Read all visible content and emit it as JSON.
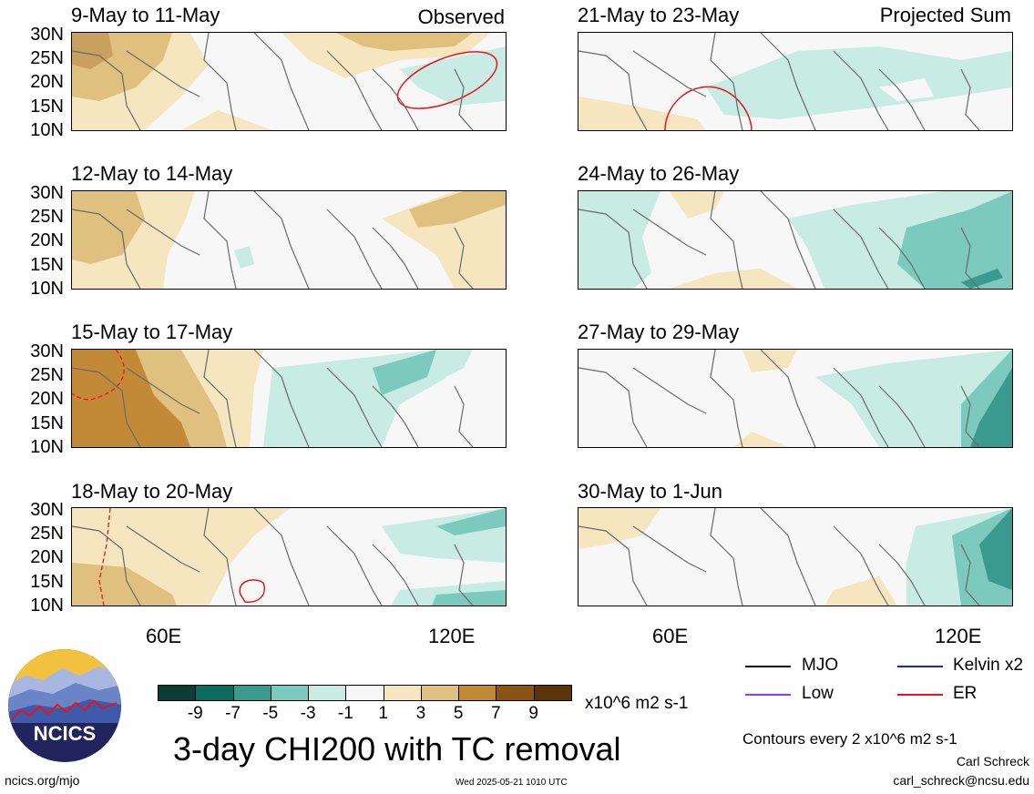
{
  "panels": [
    {
      "title": "9-May to 11-May",
      "tag": "Observed"
    },
    {
      "title": "21-May to 23-May",
      "tag": "Projected Sum"
    },
    {
      "title": "12-May to 14-May",
      "tag": ""
    },
    {
      "title": "24-May to 26-May",
      "tag": ""
    },
    {
      "title": "15-May to 17-May",
      "tag": ""
    },
    {
      "title": "27-May to 29-May",
      "tag": ""
    },
    {
      "title": "18-May to 20-May",
      "tag": ""
    },
    {
      "title": "30-May to 1-Jun",
      "tag": ""
    }
  ],
  "lat_labels": [
    "30N",
    "25N",
    "20N",
    "15N",
    "10N"
  ],
  "lon_labels": [
    "60E",
    "120E"
  ],
  "colorbar": {
    "colors": [
      "#0b3d36",
      "#0b6b5e",
      "#3a9a8d",
      "#7cc9bd",
      "#c8ebe4",
      "#f7f7f7",
      "#f6e6c0",
      "#e0c07e",
      "#c28936",
      "#8b5314",
      "#5b3508"
    ],
    "labels": [
      "-9",
      "-7",
      "-5",
      "-3",
      "-1",
      "1",
      "3",
      "5",
      "7",
      "9"
    ],
    "units": "x10^6 m2 s-1"
  },
  "main_title": "3-day CHI200 with TC removal",
  "legend": [
    {
      "label": "MJO",
      "color": "#000000"
    },
    {
      "label": "Kelvin x2",
      "color": "#1a1aff"
    },
    {
      "label": "Low",
      "color": "#9933ff"
    },
    {
      "label": "ER",
      "color": "#e8141a"
    }
  ],
  "contour_note": "Contours every 2 x10^6 m2 s-1",
  "author": "Carl Schreck",
  "email": "carl_schreck@ncsu.edu",
  "site": "ncics.org/mjo",
  "timestamp": "Wed 2025-05-21 1010 UTC",
  "logo_text": "NCICS"
}
